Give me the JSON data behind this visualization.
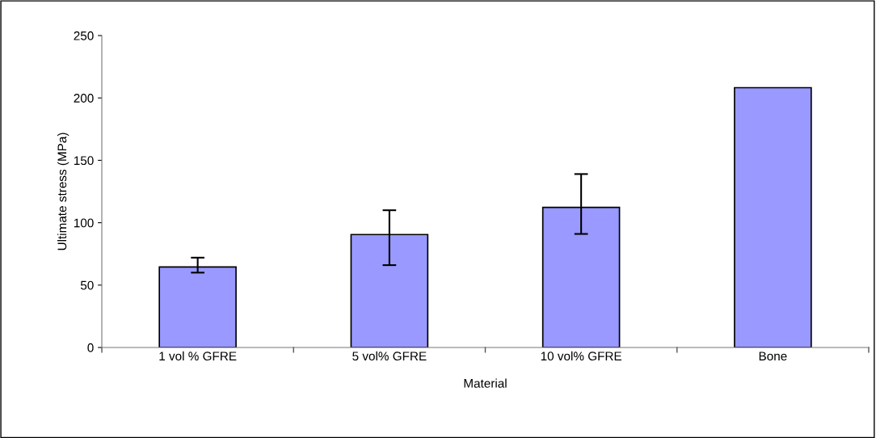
{
  "chart_data": {
    "type": "bar",
    "xlabel": "Material",
    "ylabel": "Ultimate stress (MPa)",
    "categories": [
      "1 vol % GFRE",
      "5 vol% GFRE",
      "10 vol% GFRE",
      "Bone"
    ],
    "values": [
      64.5,
      90.5,
      112.3,
      208.2
    ],
    "errors": [
      [
        60,
        72
      ],
      [
        66,
        110
      ],
      [
        91,
        139
      ],
      null
    ],
    "color": "#9999ff",
    "ylim": [
      0,
      250
    ],
    "yticks": [
      0,
      50,
      100,
      150,
      200,
      250
    ],
    "grid": false,
    "legend": false
  }
}
